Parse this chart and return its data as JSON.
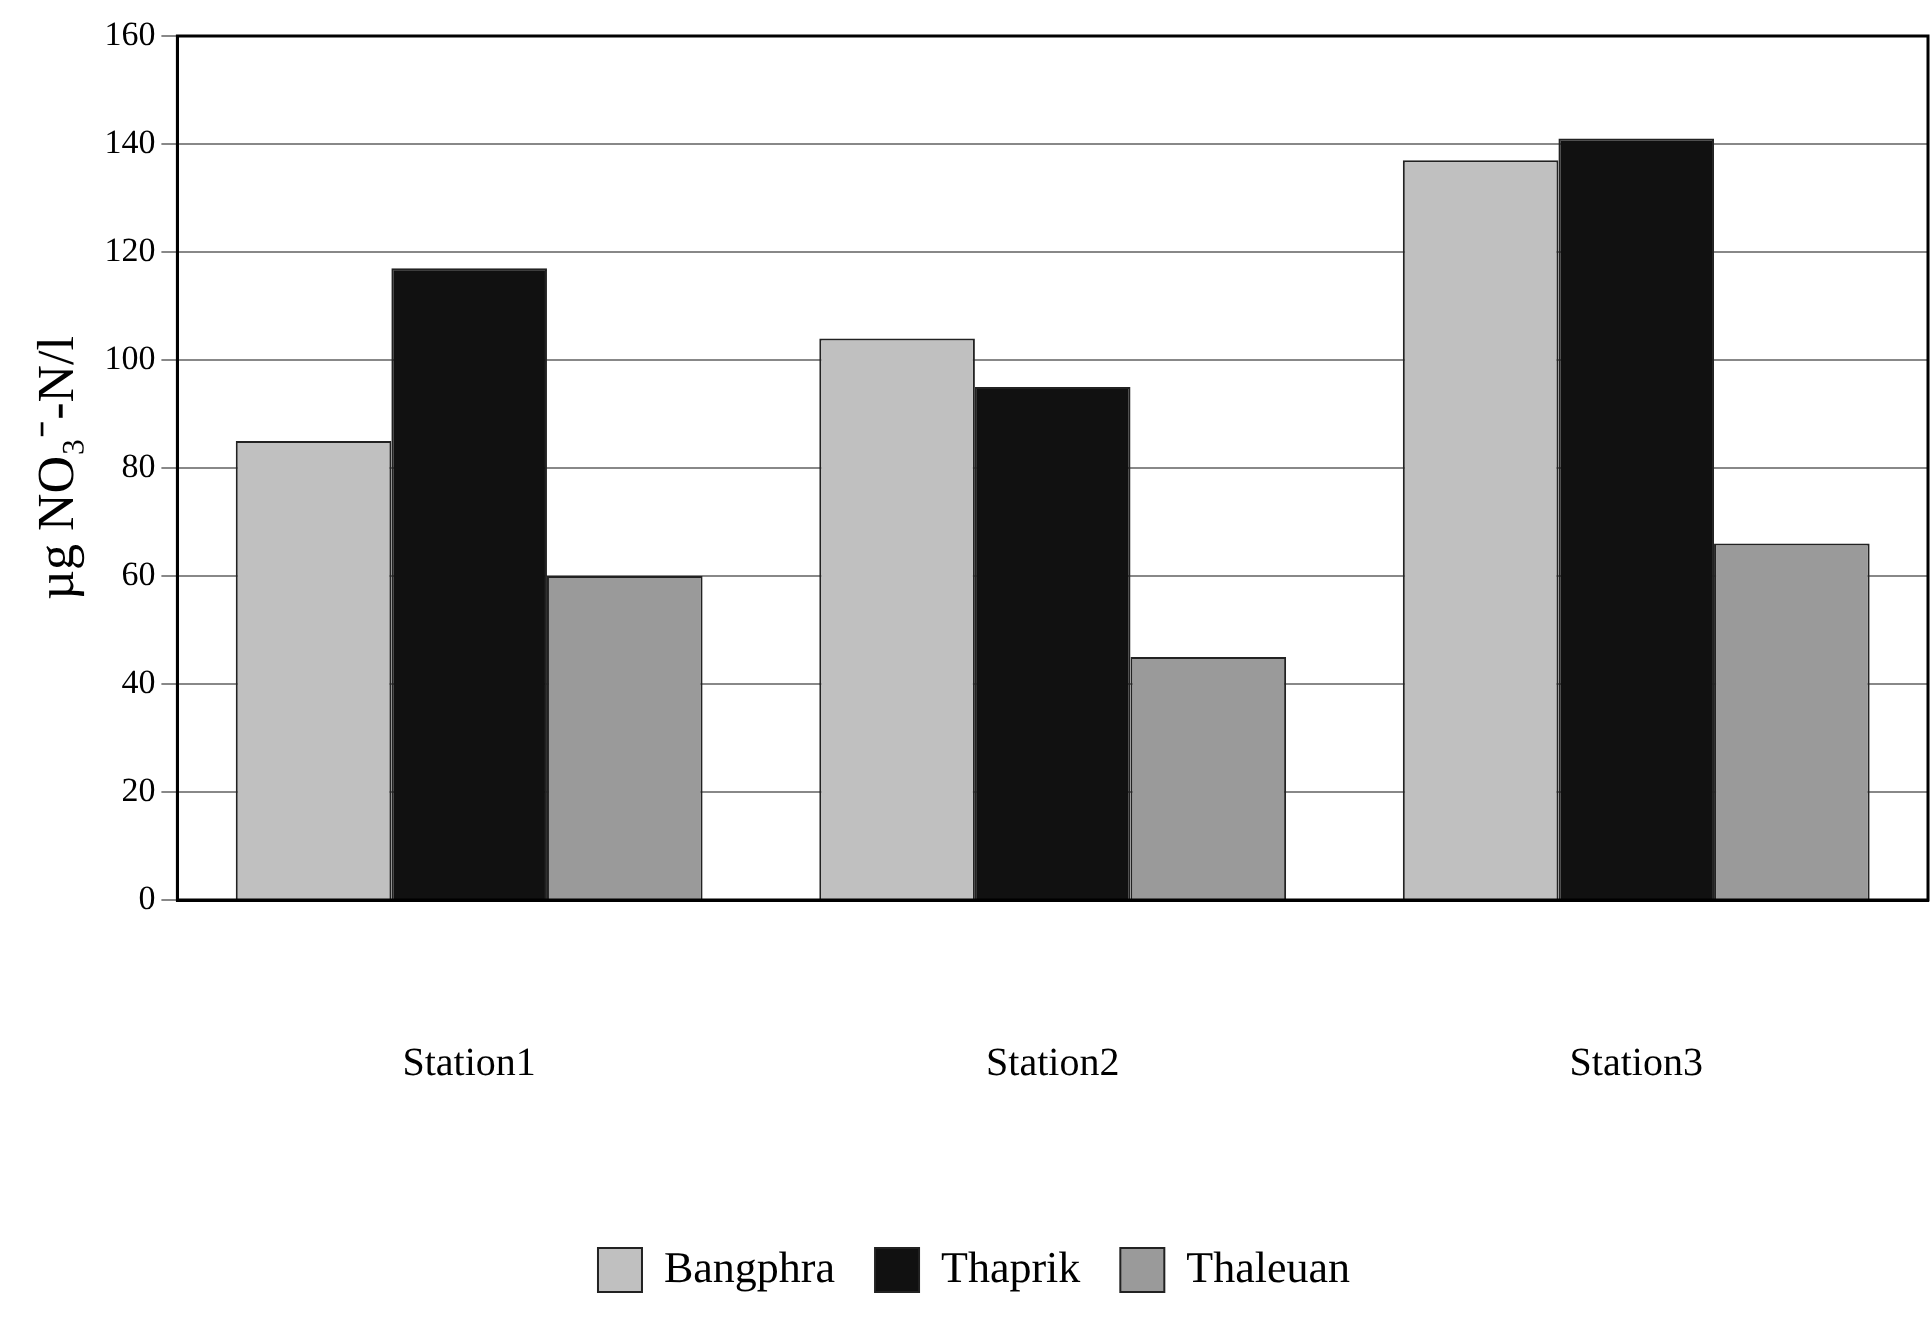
{
  "chart_data": {
    "type": "bar",
    "ylabel": "µg NO₃⁻-N/l",
    "categories": [
      "Station1",
      "Station2",
      "Station3"
    ],
    "series": [
      {
        "name": "Bangphra",
        "color": "#c0c0c0",
        "values": [
          85,
          104,
          137
        ]
      },
      {
        "name": "Thaprik",
        "color": "#111111",
        "values": [
          117,
          95,
          141
        ]
      },
      {
        "name": "Thaleuan",
        "color": "#9a9a9a",
        "values": [
          60,
          45,
          66
        ]
      }
    ],
    "ylim": [
      0,
      160
    ],
    "yticks": [
      0,
      20,
      40,
      60,
      80,
      100,
      120,
      140,
      160
    ],
    "grid": "y",
    "legend": "bottom"
  }
}
